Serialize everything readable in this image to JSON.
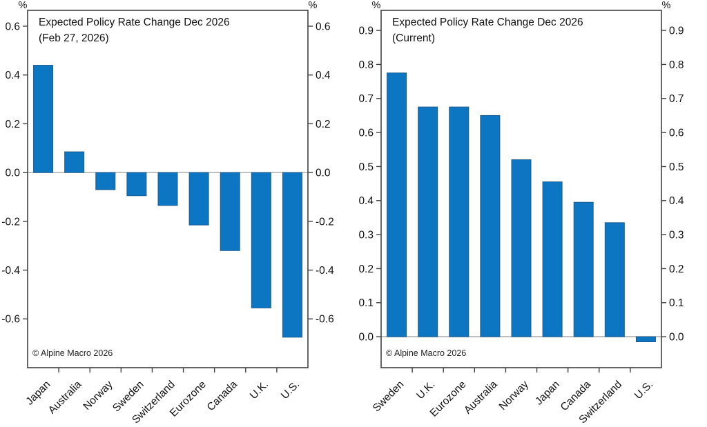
{
  "page": {
    "background_color": "#ffffff",
    "text_color": "#111111"
  },
  "chart_data": [
    {
      "type": "bar",
      "title": "Expected Policy Rate Change Dec 2026",
      "subtitle": "(Feb 27, 2026)",
      "unit": "%",
      "copyright": "© Alpine Macro 2026",
      "categories": [
        "Japan",
        "Australia",
        "Norway",
        "Sweden",
        "Switzerland",
        "Eurozone",
        "Canada",
        "U.K.",
        "U.S."
      ],
      "values": [
        0.44,
        0.085,
        -0.07,
        -0.095,
        -0.135,
        -0.215,
        -0.32,
        -0.555,
        -0.675
      ],
      "yticks": [
        0.6,
        0.4,
        0.2,
        0.0,
        -0.2,
        -0.4,
        -0.6
      ],
      "ylim": [
        -0.8,
        0.665
      ],
      "tick_label_decimals": 1,
      "grid": false,
      "legend": "none",
      "bar_color": "#0C76C3",
      "bar_edge_color": "#1B5C8F",
      "zero_line_color": "#ADADAD",
      "frame_color": "#404040"
    },
    {
      "type": "bar",
      "title": "Expected Policy Rate Change Dec 2026",
      "subtitle": "(Current)",
      "unit": "%",
      "copyright": "© Alpine Macro 2026",
      "categories": [
        "Sweden",
        "U.K.",
        "Eurozone",
        "Australia",
        "Norway",
        "Japan",
        "Canada",
        "Switzerland",
        "U.S."
      ],
      "values": [
        0.775,
        0.675,
        0.675,
        0.65,
        0.52,
        0.455,
        0.395,
        0.335,
        -0.015
      ],
      "yticks": [
        0.9,
        0.8,
        0.7,
        0.6,
        0.5,
        0.4,
        0.3,
        0.2,
        0.1,
        0.0
      ],
      "ylim": [
        -0.091,
        0.959
      ],
      "tick_label_decimals": 1,
      "grid": false,
      "legend": "none",
      "bar_color": "#0C76C3",
      "bar_edge_color": "#1B5C8F",
      "zero_line_color": "#ADADAD",
      "frame_color": "#404040"
    }
  ]
}
